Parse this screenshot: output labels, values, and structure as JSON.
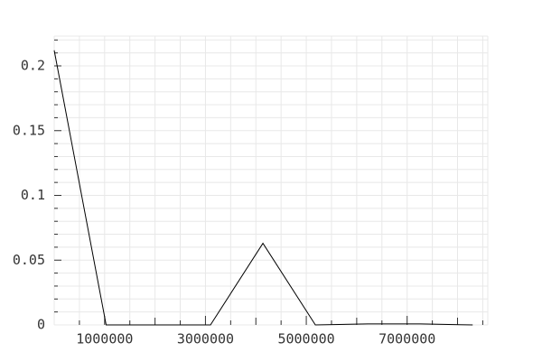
{
  "chart_data": {
    "type": "line",
    "title": "",
    "xlabel": "",
    "ylabel": "",
    "xlim": [
      0,
      8600000
    ],
    "ylim": [
      0,
      0.223
    ],
    "grid": true,
    "legend": "none",
    "x_major_ticks": [
      1000000,
      3000000,
      5000000,
      7000000
    ],
    "x_major_tick_labels": [
      "1000000",
      "3000000",
      "5000000",
      "7000000"
    ],
    "y_major_ticks": [
      0,
      0.05,
      0.1,
      0.15,
      0.2
    ],
    "y_major_tick_labels": [
      "0",
      "0.05",
      "0.1",
      "0.15",
      "0.2"
    ],
    "series": [
      {
        "x": [
          0,
          1030000,
          3100000,
          4140000,
          5180000,
          6220000,
          7260000,
          8300000
        ],
        "y": [
          0.212,
          0.0,
          0.0,
          0.063,
          0.0,
          0.0008,
          0.0008,
          0.0
        ]
      }
    ]
  },
  "colors": {
    "line": "#000000",
    "grid": "#e8e8e8",
    "tick": "#333333",
    "label": "#333333"
  }
}
